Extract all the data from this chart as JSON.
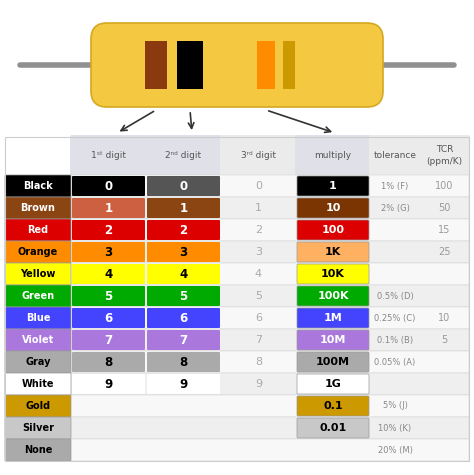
{
  "rows": [
    {
      "color_name": "Black",
      "name_bg": "#000000",
      "name_fg": "#ffffff",
      "d1": "0",
      "d2": "0",
      "d3": "0",
      "d1_bg": "#000000",
      "d2_bg": "#555555",
      "mult": "1",
      "mult_bg": "#000000",
      "mult_fg": "#ffffff",
      "tol": "1% (F)",
      "tcr": "100"
    },
    {
      "color_name": "Brown",
      "name_bg": "#8B4513",
      "name_fg": "#ffffff",
      "d1": "1",
      "d2": "1",
      "d3": "1",
      "d1_bg": "#CD6040",
      "d2_bg": "#8B4513",
      "mult": "10",
      "mult_bg": "#7B3503",
      "mult_fg": "#ffffff",
      "tol": "2% (G)",
      "tcr": "50"
    },
    {
      "color_name": "Red",
      "name_bg": "#DD0000",
      "name_fg": "#DD0000",
      "d1": "2",
      "d2": "2",
      "d3": "2",
      "d1_bg": "#DD0000",
      "d2_bg": "#DD0000",
      "mult": "100",
      "mult_bg": "#DD0000",
      "mult_fg": "#ffffff",
      "tol": "",
      "tcr": "15"
    },
    {
      "color_name": "Orange",
      "name_bg": "#FF8C00",
      "name_fg": "#000000",
      "d1": "3",
      "d2": "3",
      "d3": "3",
      "d1_bg": "#FF8C00",
      "d2_bg": "#FF8C00",
      "mult": "1K",
      "mult_bg": "#FFB060",
      "mult_fg": "#000000",
      "tol": "",
      "tcr": "25"
    },
    {
      "color_name": "Yellow",
      "name_bg": "#FFFF00",
      "name_fg": "#000000",
      "d1": "4",
      "d2": "4",
      "d3": "4",
      "d1_bg": "#FFFF00",
      "d2_bg": "#FFFF00",
      "mult": "10K",
      "mult_bg": "#FFFF00",
      "mult_fg": "#000000",
      "tol": "",
      "tcr": ""
    },
    {
      "color_name": "Green",
      "name_bg": "#00AA00",
      "name_fg": "#ffffff",
      "d1": "5",
      "d2": "5",
      "d3": "5",
      "d1_bg": "#00AA00",
      "d2_bg": "#00AA00",
      "mult": "100K",
      "mult_bg": "#00AA00",
      "mult_fg": "#ffffff",
      "tol": "0.5% (D)",
      "tcr": ""
    },
    {
      "color_name": "Blue",
      "name_bg": "#4444FF",
      "name_fg": "#ffffff",
      "d1": "6",
      "d2": "6",
      "d3": "6",
      "d1_bg": "#4444FF",
      "d2_bg": "#4444FF",
      "mult": "1M",
      "mult_bg": "#4444FF",
      "mult_fg": "#ffffff",
      "tol": "0.25% (C)",
      "tcr": "10"
    },
    {
      "color_name": "Violet",
      "name_bg": "#AA77DD",
      "name_fg": "#ffffff",
      "d1": "7",
      "d2": "7",
      "d3": "7",
      "d1_bg": "#AA77DD",
      "d2_bg": "#AA77DD",
      "mult": "10M",
      "mult_bg": "#AA77DD",
      "mult_fg": "#ffffff",
      "tol": "0.1% (B)",
      "tcr": "5"
    },
    {
      "color_name": "Gray",
      "name_bg": "#AAAAAA",
      "name_fg": "#000000",
      "d1": "8",
      "d2": "8",
      "d3": "8",
      "d1_bg": "#AAAAAA",
      "d2_bg": "#AAAAAA",
      "mult": "100M",
      "mult_bg": "#AAAAAA",
      "mult_fg": "#000000",
      "tol": "0.05% (A)",
      "tcr": ""
    },
    {
      "color_name": "White",
      "name_bg": "#FFFFFF",
      "name_fg": "#000000",
      "d1": "9",
      "d2": "9",
      "d3": "9",
      "d1_bg": "#FFFFFF",
      "d2_bg": "#FFFFFF",
      "mult": "1G",
      "mult_bg": "#FFFFFF",
      "mult_fg": "#000000",
      "tol": "",
      "tcr": ""
    },
    {
      "color_name": "Gold",
      "name_bg": "#CC9900",
      "name_fg": "#000000",
      "d1": "",
      "d2": "",
      "d3": "",
      "d1_bg": "",
      "d2_bg": "",
      "mult": "0.1",
      "mult_bg": "#CC9900",
      "mult_fg": "#000000",
      "tol": "5% (J)",
      "tcr": ""
    },
    {
      "color_name": "Silver",
      "name_bg": "#C8C8C8",
      "name_fg": "#000000",
      "d1": "",
      "d2": "",
      "d3": "",
      "d1_bg": "",
      "d2_bg": "",
      "mult": "0.01",
      "mult_bg": "#C8C8C8",
      "mult_fg": "#000000",
      "tol": "10% (K)",
      "tcr": ""
    },
    {
      "color_name": "None",
      "name_bg": "#AAAAAA",
      "name_fg": "#000000",
      "d1": "",
      "d2": "",
      "d3": "",
      "d1_bg": "",
      "d2_bg": "",
      "mult": "",
      "mult_bg": "",
      "mult_fg": "#000000",
      "tol": "20% (M)",
      "tcr": ""
    }
  ],
  "resistor_body": "#F5C842",
  "resistor_outline": "#D4A820",
  "resistor_lead": "#909090",
  "band_brown": "#8B3A10",
  "band_black": "#000000",
  "band_orange": "#FF8C00",
  "band_gold": "#CC9900",
  "header_bg": "#E8E8EE",
  "row_alt1": "#F8F8F8",
  "row_alt2": "#EFEFEF",
  "tol_tcr_bg": "#F0F0F4"
}
